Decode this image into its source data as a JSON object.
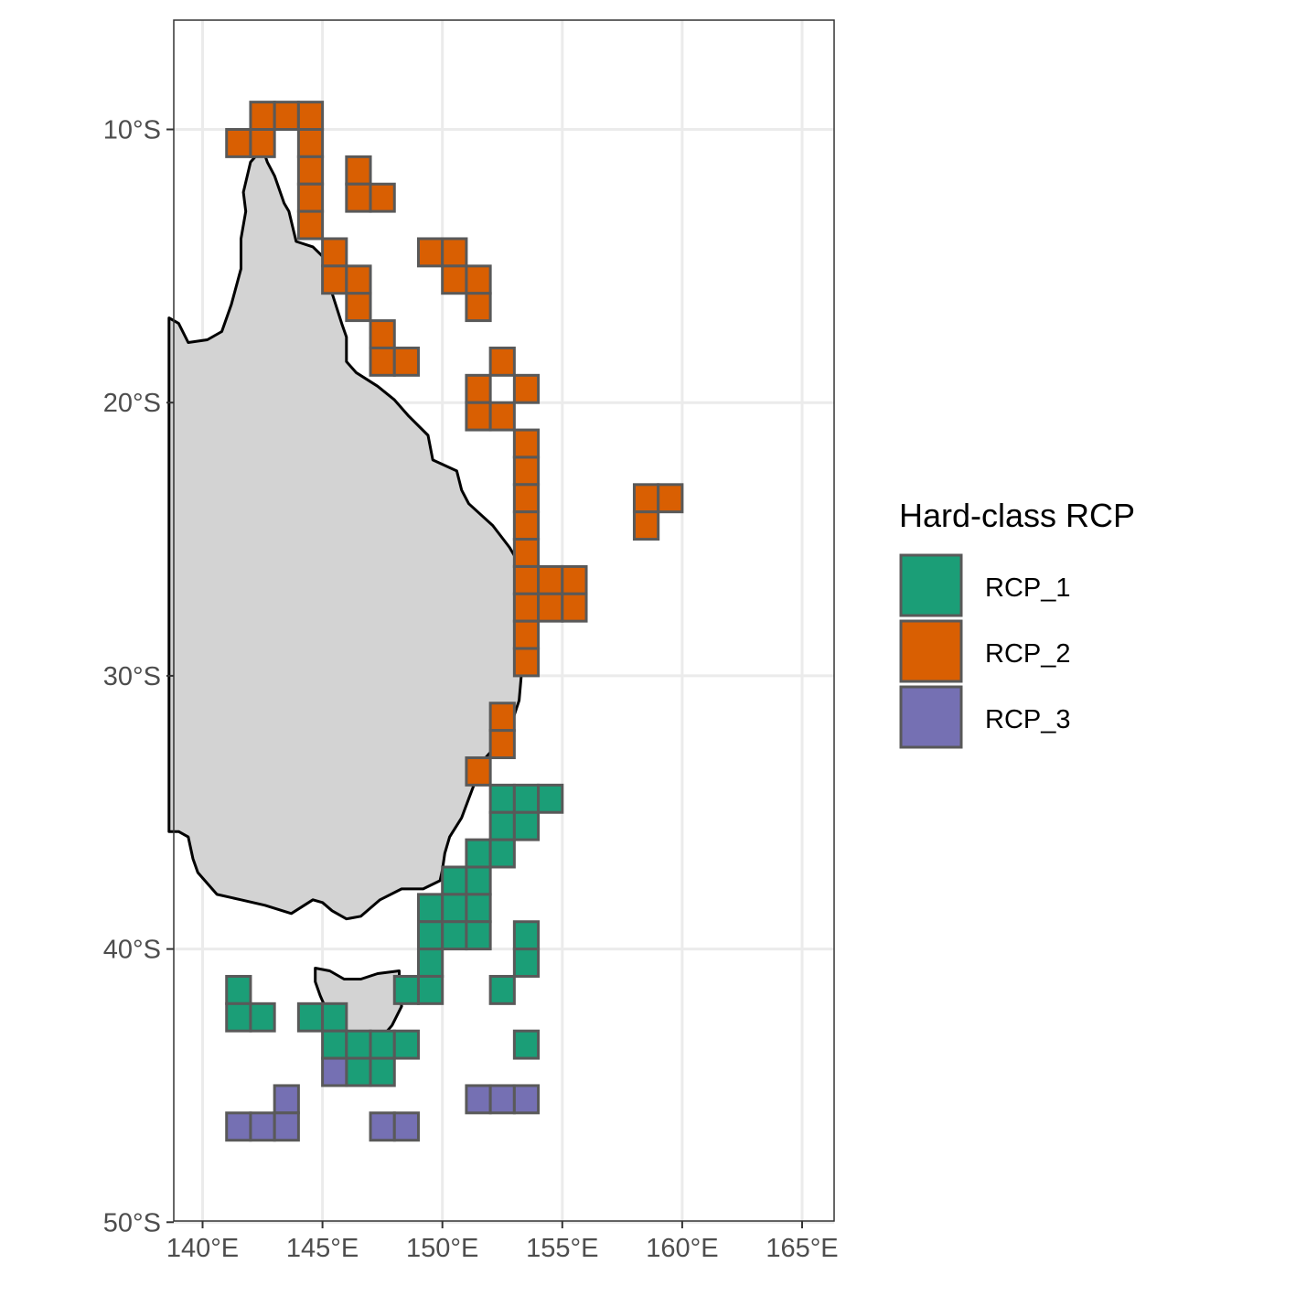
{
  "chart_data": {
    "type": "map",
    "x_range_deg_e": [
      138.6,
      166.1
    ],
    "y_range_deg_s": [
      6.0,
      50.0
    ],
    "x_ticks": [
      {
        "value": 140,
        "label": "140°E"
      },
      {
        "value": 145,
        "label": "145°E"
      },
      {
        "value": 150,
        "label": "150°E"
      },
      {
        "value": 155,
        "label": "155°E"
      },
      {
        "value": 160,
        "label": "160°E"
      },
      {
        "value": 165,
        "label": "165°E"
      }
    ],
    "y_ticks": [
      {
        "value": 10,
        "label": "10°S"
      },
      {
        "value": 20,
        "label": "20°S"
      },
      {
        "value": 30,
        "label": "30°S"
      },
      {
        "value": 40,
        "label": "40°S"
      },
      {
        "value": 50,
        "label": "50°S"
      }
    ],
    "grid": true,
    "legend": {
      "title": "Hard-class RCP",
      "placement": "right",
      "items": [
        {
          "key": "RCP_1",
          "label": "RCP_1",
          "color": "#1b9e77"
        },
        {
          "key": "RCP_2",
          "label": "RCP_2",
          "color": "#d95f02"
        },
        {
          "key": "RCP_3",
          "label": "RCP_3",
          "color": "#7570b3"
        }
      ]
    },
    "cell_size_deg": 1,
    "cells": {
      "RCP_2": [
        [
          141.5,
          10.5
        ],
        [
          142.5,
          10.5
        ],
        [
          142.5,
          9.5
        ],
        [
          143.5,
          9.5
        ],
        [
          144.5,
          9.5
        ],
        [
          144.5,
          10.5
        ],
        [
          144.5,
          11.5
        ],
        [
          144.5,
          12.5
        ],
        [
          144.5,
          13.5
        ],
        [
          146.5,
          11.5
        ],
        [
          146.5,
          12.5
        ],
        [
          147.5,
          12.5
        ],
        [
          145.5,
          14.5
        ],
        [
          145.5,
          15.5
        ],
        [
          146.5,
          15.5
        ],
        [
          146.5,
          16.5
        ],
        [
          147.5,
          17.5
        ],
        [
          147.5,
          18.5
        ],
        [
          148.5,
          18.5
        ],
        [
          149.5,
          14.5
        ],
        [
          150.5,
          14.5
        ],
        [
          150.5,
          15.5
        ],
        [
          151.5,
          15.5
        ],
        [
          151.5,
          16.5
        ],
        [
          152.5,
          18.5
        ],
        [
          151.5,
          19.5
        ],
        [
          153.5,
          19.5
        ],
        [
          151.5,
          20.5
        ],
        [
          152.5,
          20.5
        ],
        [
          153.5,
          21.5
        ],
        [
          153.5,
          22.5
        ],
        [
          153.5,
          23.5
        ],
        [
          153.5,
          24.5
        ],
        [
          153.5,
          25.5
        ],
        [
          153.5,
          26.5
        ],
        [
          154.5,
          26.5
        ],
        [
          155.5,
          26.5
        ],
        [
          153.5,
          27.5
        ],
        [
          154.5,
          27.5
        ],
        [
          155.5,
          27.5
        ],
        [
          153.5,
          28.5
        ],
        [
          153.5,
          29.5
        ],
        [
          152.5,
          31.5
        ],
        [
          152.5,
          32.5
        ],
        [
          151.5,
          33.5
        ],
        [
          158.5,
          23.5
        ],
        [
          159.5,
          23.5
        ],
        [
          158.5,
          24.5
        ]
      ],
      "RCP_1": [
        [
          152.5,
          34.5
        ],
        [
          153.5,
          34.5
        ],
        [
          154.5,
          34.5
        ],
        [
          152.5,
          35.5
        ],
        [
          153.5,
          35.5
        ],
        [
          151.5,
          36.5
        ],
        [
          152.5,
          36.5
        ],
        [
          150.5,
          37.5
        ],
        [
          151.5,
          37.5
        ],
        [
          149.5,
          38.5
        ],
        [
          150.5,
          38.5
        ],
        [
          151.5,
          38.5
        ],
        [
          149.5,
          39.5
        ],
        [
          150.5,
          39.5
        ],
        [
          151.5,
          39.5
        ],
        [
          153.5,
          39.5
        ],
        [
          153.5,
          40.5
        ],
        [
          149.5,
          40.5
        ],
        [
          148.5,
          41.5
        ],
        [
          149.5,
          41.5
        ],
        [
          152.5,
          41.5
        ],
        [
          141.5,
          41.5
        ],
        [
          141.5,
          42.5
        ],
        [
          142.5,
          42.5
        ],
        [
          144.5,
          42.5
        ],
        [
          145.5,
          42.5
        ],
        [
          145.5,
          43.5
        ],
        [
          146.5,
          43.5
        ],
        [
          147.5,
          43.5
        ],
        [
          148.5,
          43.5
        ],
        [
          153.5,
          43.5
        ],
        [
          146.5,
          44.5
        ],
        [
          147.5,
          44.5
        ]
      ],
      "RCP_3": [
        [
          145.5,
          44.5
        ],
        [
          143.5,
          45.5
        ],
        [
          151.5,
          45.5
        ],
        [
          152.5,
          45.5
        ],
        [
          153.5,
          45.5
        ],
        [
          141.5,
          46.5
        ],
        [
          142.5,
          46.5
        ],
        [
          143.5,
          46.5
        ],
        [
          147.5,
          46.5
        ],
        [
          148.5,
          46.5
        ]
      ]
    },
    "land": {
      "mainland": [
        [
          138.6,
          16.9
        ],
        [
          139.0,
          17.1
        ],
        [
          139.4,
          17.8
        ],
        [
          140.2,
          17.7
        ],
        [
          140.8,
          17.4
        ],
        [
          141.2,
          16.4
        ],
        [
          141.6,
          15.1
        ],
        [
          141.6,
          14.0
        ],
        [
          141.8,
          13.0
        ],
        [
          141.7,
          12.3
        ],
        [
          142.0,
          11.2
        ],
        [
          142.3,
          10.9
        ],
        [
          142.5,
          10.7
        ],
        [
          142.7,
          11.2
        ],
        [
          143.0,
          11.7
        ],
        [
          143.4,
          12.7
        ],
        [
          143.6,
          13.0
        ],
        [
          143.9,
          14.1
        ],
        [
          144.6,
          14.3
        ],
        [
          145.3,
          14.9
        ],
        [
          145.4,
          16.0
        ],
        [
          145.8,
          17.1
        ],
        [
          146.0,
          17.6
        ],
        [
          146.0,
          18.5
        ],
        [
          146.4,
          18.9
        ],
        [
          147.3,
          19.4
        ],
        [
          148.0,
          19.9
        ],
        [
          148.6,
          20.5
        ],
        [
          149.4,
          21.2
        ],
        [
          149.6,
          22.1
        ],
        [
          150.1,
          22.3
        ],
        [
          150.6,
          22.5
        ],
        [
          150.8,
          23.2
        ],
        [
          151.1,
          23.7
        ],
        [
          152.1,
          24.5
        ],
        [
          152.8,
          25.3
        ],
        [
          153.2,
          25.9
        ],
        [
          153.1,
          27.0
        ],
        [
          153.3,
          27.7
        ],
        [
          153.6,
          28.5
        ],
        [
          153.5,
          29.3
        ],
        [
          153.3,
          29.9
        ],
        [
          153.2,
          30.9
        ],
        [
          152.9,
          31.7
        ],
        [
          152.6,
          32.2
        ],
        [
          152.2,
          32.6
        ],
        [
          151.8,
          33.0
        ],
        [
          151.4,
          33.8
        ],
        [
          151.1,
          34.5
        ],
        [
          150.8,
          35.2
        ],
        [
          150.3,
          35.9
        ],
        [
          150.1,
          36.5
        ],
        [
          150.0,
          37.1
        ],
        [
          149.9,
          37.5
        ],
        [
          149.2,
          37.8
        ],
        [
          148.3,
          37.8
        ],
        [
          147.4,
          38.2
        ],
        [
          146.6,
          38.8
        ],
        [
          146.0,
          38.9
        ],
        [
          145.4,
          38.6
        ],
        [
          145.0,
          38.3
        ],
        [
          144.6,
          38.2
        ],
        [
          143.7,
          38.7
        ],
        [
          142.6,
          38.4
        ],
        [
          141.6,
          38.2
        ],
        [
          140.6,
          38.0
        ],
        [
          139.8,
          37.2
        ],
        [
          139.6,
          36.7
        ],
        [
          139.4,
          35.9
        ],
        [
          139.0,
          35.7
        ],
        [
          138.6,
          35.7
        ]
      ],
      "tasmania": [
        [
          144.7,
          40.7
        ],
        [
          145.3,
          40.8
        ],
        [
          145.9,
          41.1
        ],
        [
          146.6,
          41.1
        ],
        [
          147.3,
          40.9
        ],
        [
          148.2,
          40.8
        ],
        [
          148.2,
          41.3
        ],
        [
          148.3,
          42.1
        ],
        [
          147.9,
          42.8
        ],
        [
          147.4,
          43.3
        ],
        [
          146.8,
          43.6
        ],
        [
          146.3,
          43.4
        ],
        [
          145.9,
          43.3
        ],
        [
          145.2,
          42.3
        ],
        [
          144.9,
          41.7
        ],
        [
          144.7,
          41.2
        ]
      ]
    }
  }
}
